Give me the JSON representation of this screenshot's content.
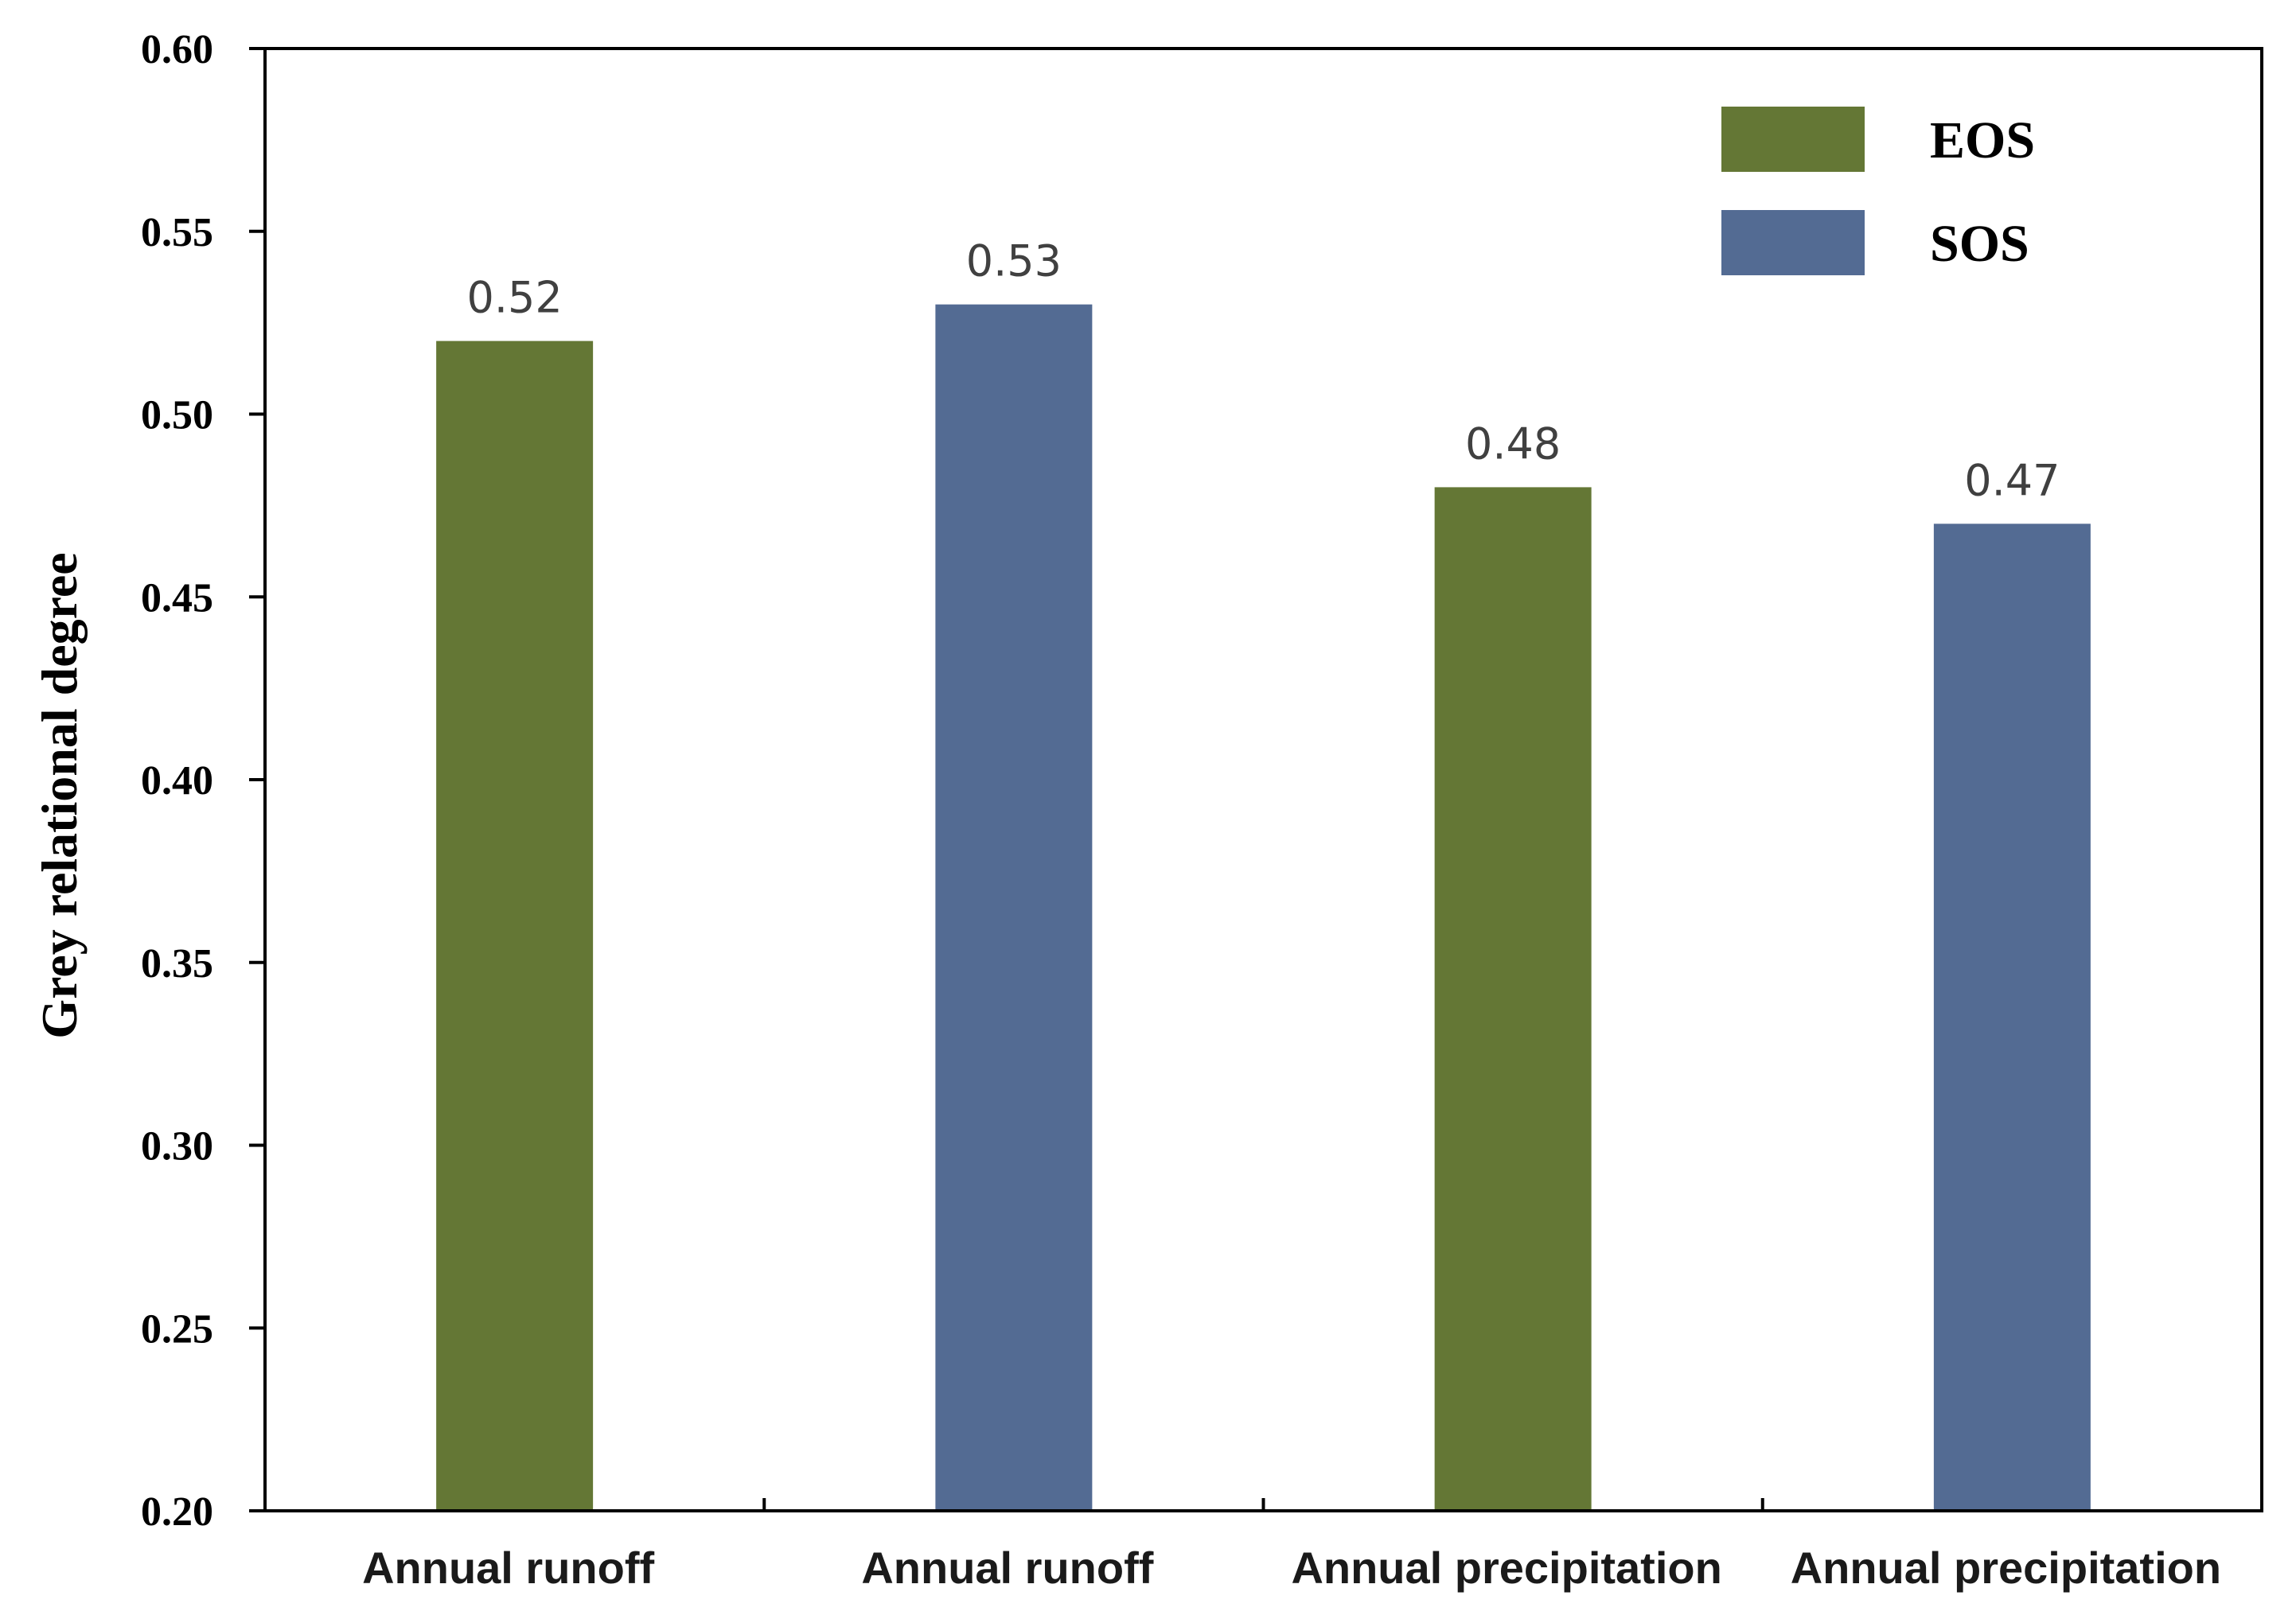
{
  "chart_data": {
    "type": "bar",
    "title": "",
    "xlabel": "",
    "ylabel": "Grey relational degree",
    "ylim": [
      0.2,
      0.6
    ],
    "yticks": [
      "0.20",
      "0.25",
      "0.30",
      "0.35",
      "0.40",
      "0.45",
      "0.50",
      "0.55",
      "0.60"
    ],
    "categories": [
      "Annual runoff",
      "Annual runoff",
      "Annual precipitation",
      "Annual precipitation"
    ],
    "values": [
      0.52,
      0.53,
      0.48,
      0.47
    ],
    "value_labels": [
      "0.52",
      "0.53",
      "0.48",
      "0.47"
    ],
    "bar_series": [
      "EOS",
      "SOS",
      "EOS",
      "SOS"
    ],
    "legend": {
      "placement": "top-right",
      "entries": [
        {
          "name": "EOS",
          "color": "#647735"
        },
        {
          "name": "SOS",
          "color": "#536b93"
        }
      ]
    },
    "grid": false
  }
}
